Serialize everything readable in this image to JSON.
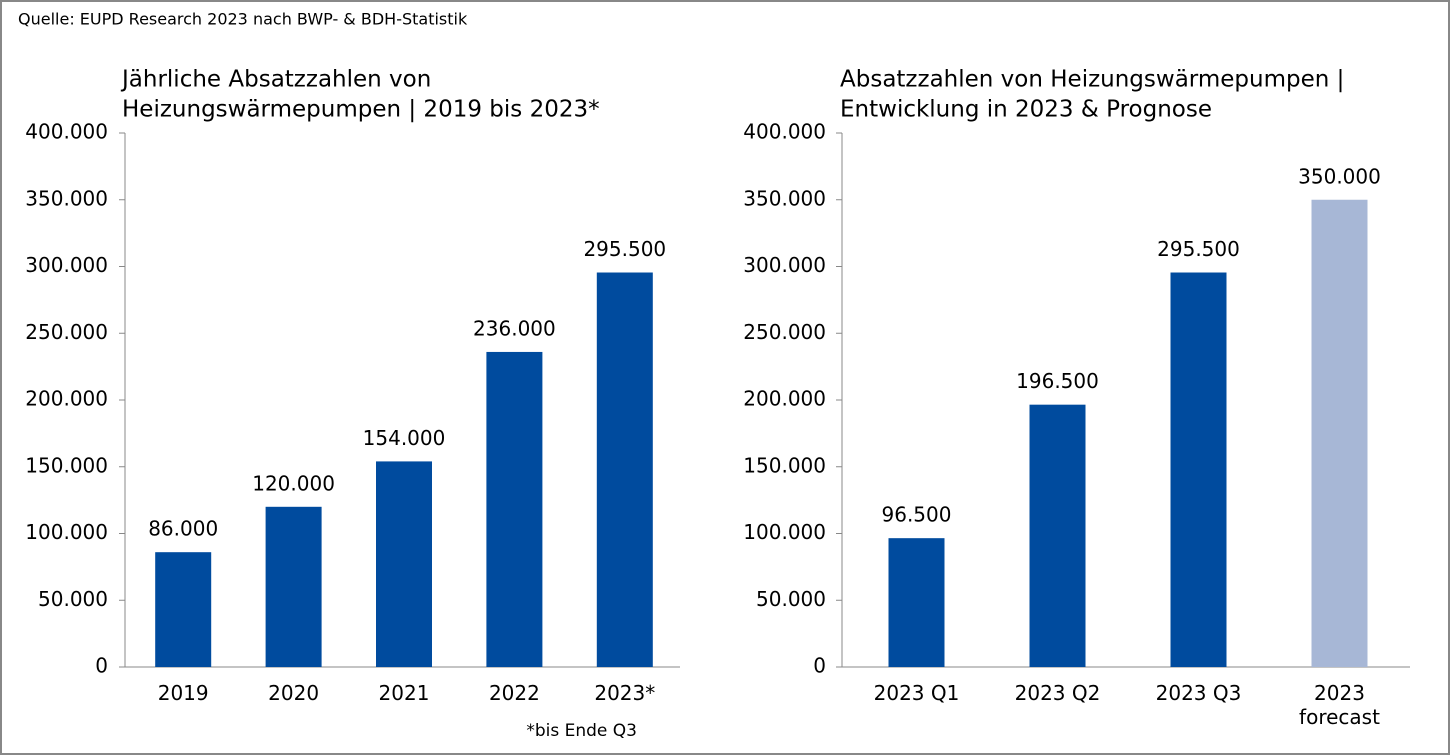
{
  "source": "Quelle: EUPD Research 2023 nach BWP- & BDH-Statistik",
  "chart_data": [
    {
      "type": "bar",
      "title": [
        "Jährliche Absatzzahlen von",
        "Heizungswärmepumpen | 2019 bis 2023*"
      ],
      "categories": [
        "2019",
        "2020",
        "2021",
        "2022",
        "2023*"
      ],
      "values": [
        86000,
        120000,
        154000,
        236000,
        295500
      ],
      "value_labels": [
        "86.000",
        "120.000",
        "154.000",
        "236.000",
        "295.500"
      ],
      "colors": [
        "#004b9e",
        "#004b9e",
        "#004b9e",
        "#004b9e",
        "#004b9e"
      ],
      "ylim": [
        0,
        400000
      ],
      "yticks": [
        0,
        {
          "value": 50000,
          "label": "50.000"
        },
        {
          "value": 100000,
          "label": "100.000"
        },
        {
          "value": 150000,
          "label": "150.000"
        },
        {
          "value": 200000,
          "label": "200.000"
        },
        {
          "value": 250000,
          "label": "250.000"
        },
        {
          "value": 300000,
          "label": "300.000"
        },
        {
          "value": 350000,
          "label": "350.000"
        },
        {
          "value": 400000,
          "label": "400.000"
        }
      ],
      "note": "*bis Ende Q3"
    },
    {
      "type": "bar",
      "title": [
        "Absatzzahlen von Heizungswärmepumpen |",
        "Entwicklung in 2023 & Prognose"
      ],
      "categories": [
        "2023 Q1",
        "2023 Q2",
        "2023 Q3",
        "2023 forecast"
      ],
      "values": [
        96500,
        196500,
        295500,
        350000
      ],
      "value_labels": [
        "96.500",
        "196.500",
        "295.500",
        "350.000"
      ],
      "colors": [
        "#004b9e",
        "#004b9e",
        "#004b9e",
        "#a7b7d6"
      ],
      "ylim": [
        0,
        400000
      ],
      "yticks": [
        0,
        {
          "value": 50000,
          "label": "50.000"
        },
        {
          "value": 100000,
          "label": "100.000"
        },
        {
          "value": 150000,
          "label": "150.000"
        },
        {
          "value": 200000,
          "label": "200.000"
        },
        {
          "value": 250000,
          "label": "250.000"
        },
        {
          "value": 300000,
          "label": "300.000"
        },
        {
          "value": 350000,
          "label": "350.000"
        },
        {
          "value": 400000,
          "label": "400.000"
        }
      ]
    }
  ]
}
